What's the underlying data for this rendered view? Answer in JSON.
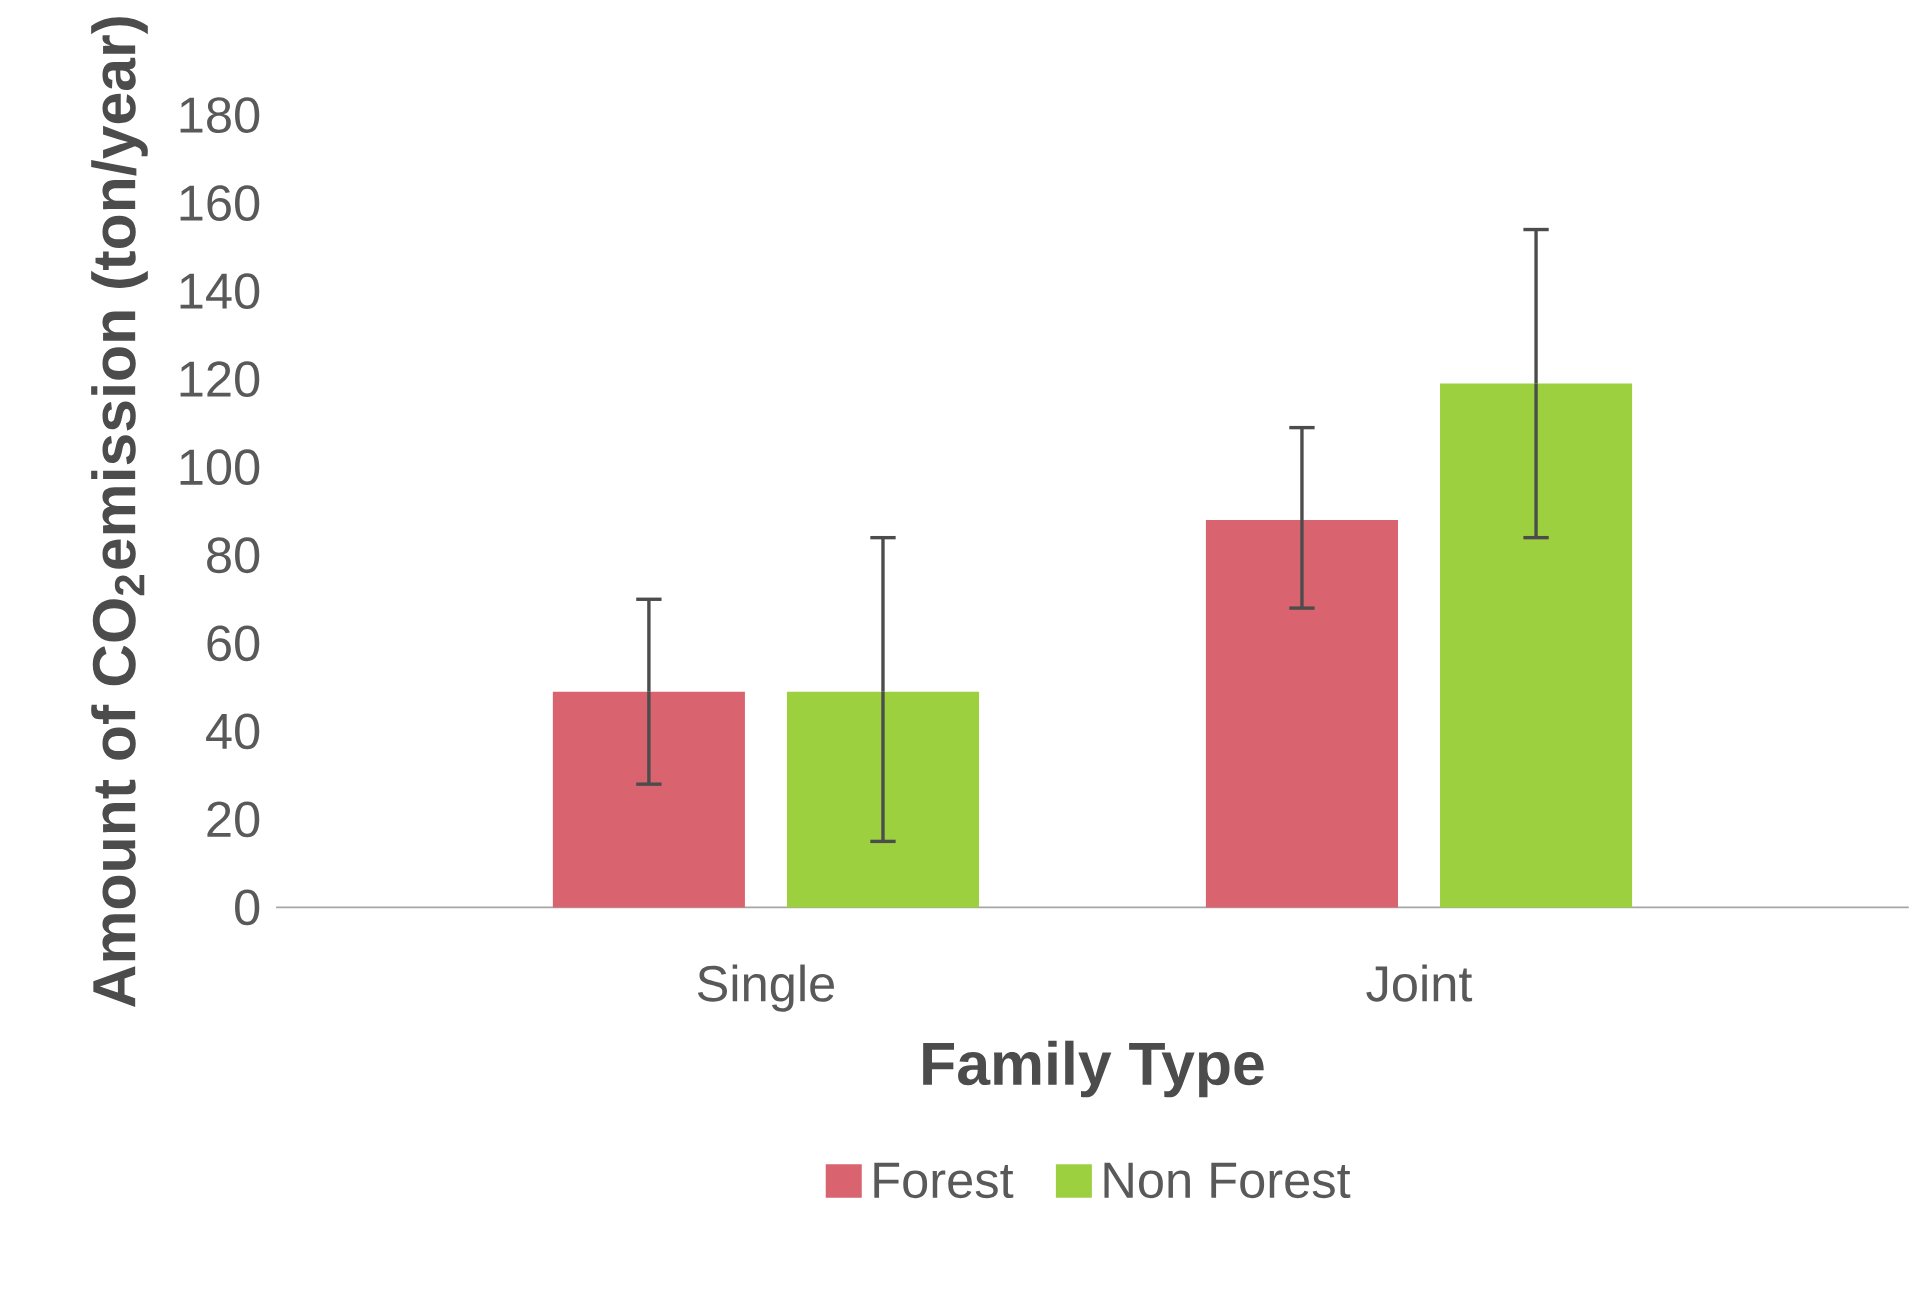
{
  "chart_data": {
    "type": "bar",
    "xlabel": "Family Type",
    "ylabel": "Amount of CO$_{2}$emission (ton/year)",
    "categories": [
      "Single",
      "Joint"
    ],
    "series": [
      {
        "name": "Forest",
        "color": "#d9636e",
        "values": [
          49,
          88
        ],
        "errors": [
          [
            28,
            70
          ],
          [
            68,
            109
          ]
        ]
      },
      {
        "name": "Non Forest",
        "color": "#9dd03e",
        "values": [
          49,
          119
        ],
        "errors": [
          [
            15,
            84
          ],
          [
            84,
            154
          ]
        ]
      }
    ],
    "ylim": [
      0,
      180
    ],
    "yticks": [
      0,
      20,
      40,
      60,
      80,
      100,
      120,
      140,
      160,
      180
    ],
    "grid": false,
    "legend": "bottom"
  }
}
